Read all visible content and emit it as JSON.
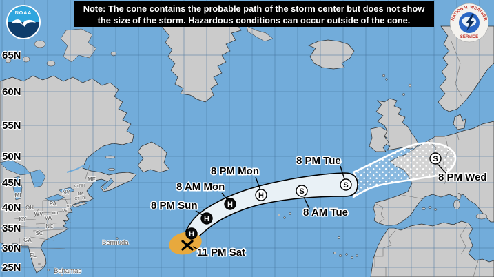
{
  "note": {
    "line1": "Note: The cone contains the probable path of the storm center but does not show",
    "line2": "the size of the storm. Hazardous conditions can occur outside of the cone."
  },
  "logos": {
    "noaa": "NOAA",
    "nws_top": "NATIONAL WEATHER",
    "nws_bottom": "SERVICE"
  },
  "colors": {
    "ocean": "#72ACDA",
    "land": "#CBCBCB",
    "coastline": "#2B2B2B",
    "grid": "#44719B",
    "cone_fill": "#E9F1F6",
    "cone_outline": "#000000",
    "extended_cone_outline": "#FFFFFF",
    "current_position_fill": "#E8A93D",
    "note_background": "#000000",
    "note_text": "#FFFFFF",
    "marker_day1_3": "#0A0A0A",
    "marker_day4_5": "#FFFFFF",
    "state_label": "#6B6B6B"
  },
  "map": {
    "latitude_labels": [
      "65N",
      "60N",
      "55N",
      "50N",
      "45N",
      "40N",
      "35N",
      "30N",
      "25N"
    ],
    "state_labels": [
      "MI",
      "OH",
      "WV",
      "KY",
      "VA",
      "PA",
      "NY",
      "ME",
      "NC",
      "SC",
      "GA",
      "FL",
      "NJ",
      "MD",
      "DE",
      "VT",
      "NH",
      "MA",
      "CT",
      "RI"
    ],
    "place_labels": [
      "Bermuda",
      "Bahamas"
    ]
  },
  "track": {
    "current": {
      "label": "11 PM Sat"
    },
    "points": [
      {
        "letter": "H",
        "label": ""
      },
      {
        "letter": "H",
        "label": "8 PM Sun"
      },
      {
        "letter": "H",
        "label": "8 AM Mon"
      },
      {
        "letter": "H",
        "label": "8 PM Mon"
      },
      {
        "letter": "S",
        "label": "8 AM Tue"
      },
      {
        "letter": "S",
        "label": "8 PM Tue"
      },
      {
        "letter": "S",
        "label": "8 PM Wed"
      }
    ]
  }
}
